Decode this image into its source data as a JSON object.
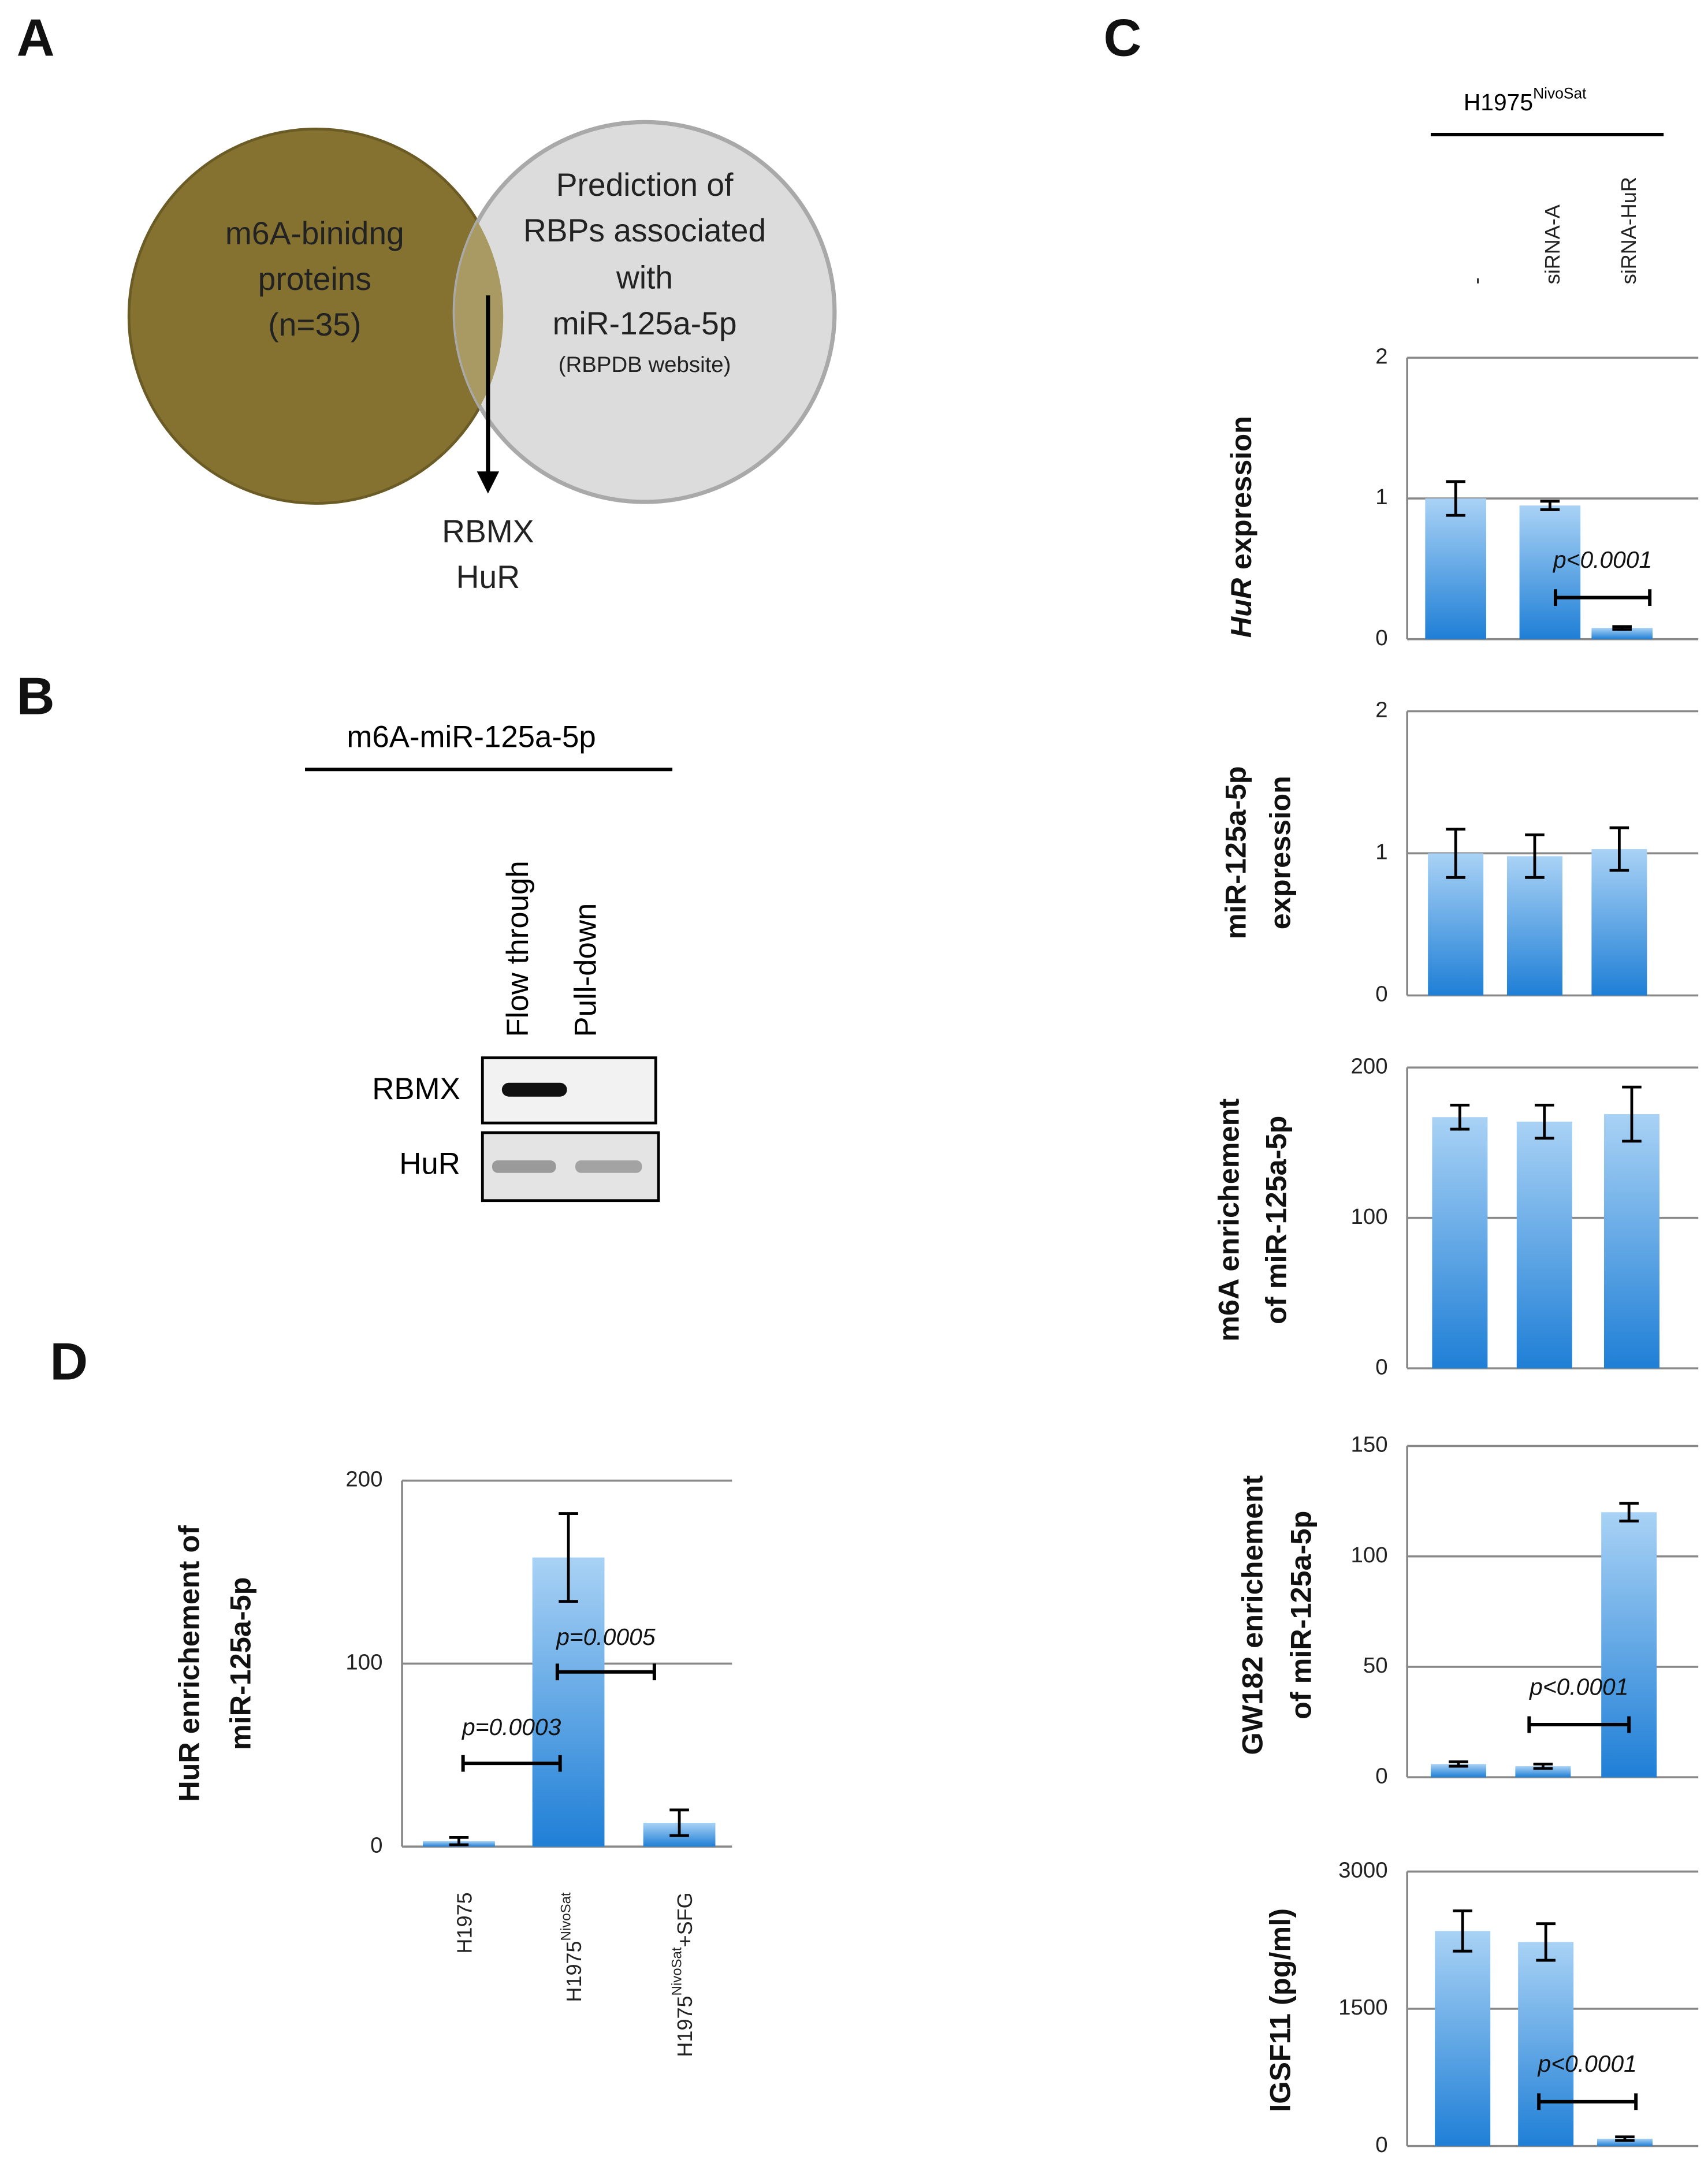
{
  "panels": [
    "A",
    "B",
    "C",
    "D"
  ],
  "venn": {
    "left": [
      "m6A-binidng",
      "proteins",
      "(n=35)"
    ],
    "right": [
      "Prediction of",
      "RBPs associated",
      "with",
      "miR-125a-5p"
    ],
    "right_note": "(RBPDB website)",
    "result": [
      "RBMX",
      "HuR"
    ]
  },
  "blot": {
    "title": "m6A-miR-125a-5p",
    "lanes": [
      "Flow through",
      "Pull-down"
    ],
    "rows": [
      "RBMX",
      "HuR"
    ]
  },
  "panel_c": {
    "group_label": [
      "H1975",
      "NivoSat"
    ],
    "categories": [
      "-",
      "siRNA-A",
      "siRNA-HuR"
    ]
  },
  "chart_data": [
    {
      "type": "bar",
      "ylabel": [
        "HuR",
        "expression"
      ],
      "values": [
        1.0,
        0.95,
        0.08
      ],
      "errors": [
        0.12,
        0.03,
        0.01
      ],
      "ylim": [
        0,
        2
      ],
      "yticks": [
        0,
        1,
        2
      ],
      "grid": true,
      "annotations": [
        "p<0.0001"
      ]
    },
    {
      "type": "bar",
      "ylabel": [
        "miR-125a-5p",
        "expression"
      ],
      "values": [
        1.0,
        0.98,
        1.03
      ],
      "errors": [
        0.17,
        0.15,
        0.15
      ],
      "ylim": [
        0,
        2
      ],
      "yticks": [
        0,
        1,
        2
      ],
      "grid": true,
      "annotations": []
    },
    {
      "type": "bar",
      "ylabel": [
        "m6A enrichement",
        "of miR-125a-5p"
      ],
      "values": [
        167,
        164,
        169
      ],
      "errors": [
        8,
        11,
        18
      ],
      "ylim": [
        0,
        200
      ],
      "yticks": [
        0,
        100,
        200
      ],
      "grid": true,
      "annotations": []
    },
    {
      "type": "bar",
      "ylabel": [
        "GW182 enrichement",
        "of miR-125a-5p"
      ],
      "values": [
        6,
        5,
        120
      ],
      "errors": [
        1,
        1,
        4
      ],
      "ylim": [
        0,
        150
      ],
      "yticks": [
        0,
        50,
        100,
        150
      ],
      "grid": true,
      "annotations": [
        "p<0.0001"
      ]
    },
    {
      "type": "bar",
      "ylabel": [
        "IGSF11 (pg/ml)"
      ],
      "values": [
        2350,
        2230,
        80
      ],
      "errors": [
        220,
        200,
        20
      ],
      "ylim": [
        0,
        3000
      ],
      "yticks": [
        0,
        1500,
        3000
      ],
      "grid": true,
      "annotations": [
        "p<0.0001"
      ]
    },
    {
      "type": "bar",
      "ylabel": [
        "HuR enrichement  of",
        "miR-125a-5p"
      ],
      "categories": [
        [
          "H1975"
        ],
        [
          "H1975",
          "NivoSat"
        ],
        [
          "H1975",
          "NivoSat",
          "+SFG"
        ]
      ],
      "values": [
        3,
        158,
        13
      ],
      "errors": [
        2,
        24,
        7
      ],
      "ylim": [
        0,
        200
      ],
      "yticks": [
        0,
        100,
        200
      ],
      "grid": true,
      "annotations": [
        "p=0.0003",
        "p=0.0005"
      ]
    }
  ]
}
